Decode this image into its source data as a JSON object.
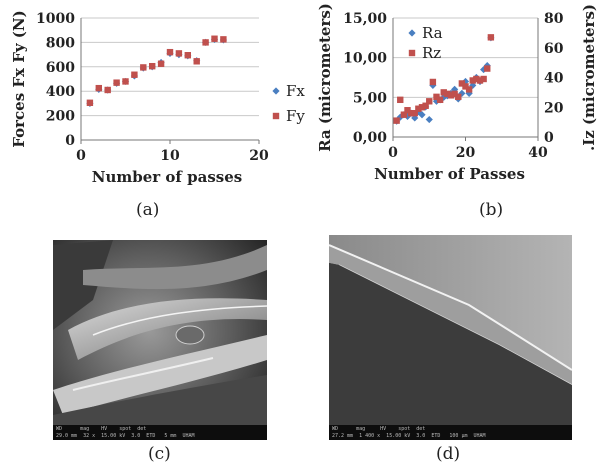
{
  "chart_data": [
    {
      "type": "scatter",
      "panel": "(a)",
      "xlabel": "Number of passes",
      "ylabel": "Forces  Fx  Fy (N)",
      "xlim": [
        0,
        20
      ],
      "ylim": [
        0,
        1000
      ],
      "xticks": [
        "0",
        "10",
        "20"
      ],
      "yticks": [
        "0",
        "200",
        "400",
        "600",
        "800",
        "1000"
      ],
      "legend_position": "right",
      "series": [
        {
          "name": "Fx",
          "color": "#4a7fc1",
          "marker": "diamond",
          "x": [
            1,
            2,
            3,
            4,
            5,
            6,
            7,
            8,
            9,
            10,
            11,
            12,
            13,
            14,
            15,
            16
          ],
          "y": [
            300,
            415,
            410,
            465,
            480,
            525,
            590,
            600,
            635,
            710,
            700,
            690,
            650,
            800,
            825,
            820
          ]
        },
        {
          "name": "Fy",
          "color": "#c0504d",
          "marker": "square",
          "x": [
            1,
            2,
            3,
            4,
            5,
            6,
            7,
            8,
            9,
            10,
            11,
            12,
            13,
            14,
            15,
            16
          ],
          "y": [
            305,
            425,
            410,
            470,
            480,
            535,
            595,
            605,
            625,
            720,
            710,
            695,
            645,
            800,
            830,
            825
          ]
        }
      ]
    },
    {
      "type": "scatter",
      "panel": "(b)",
      "xlabel": "Number of Passes",
      "ylabel": "Ra (micrometers)",
      "ylabel_right": ".Iz (micrometers)",
      "xlim": [
        0,
        40
      ],
      "ylim": [
        0,
        15
      ],
      "ylim_right": [
        0,
        80
      ],
      "xticks": [
        "0",
        "20",
        "40"
      ],
      "yticks": [
        "0,00",
        "5,00",
        "10,00",
        "15,00"
      ],
      "yticks_right": [
        "0",
        "20",
        "40",
        "60",
        "80"
      ],
      "legend_position": "top-inside",
      "series": [
        {
          "name": "Ra",
          "color": "#4a7fc1",
          "marker": "diamond",
          "axis": "left",
          "x": [
            1,
            2,
            3,
            4,
            5,
            6,
            7,
            8,
            9,
            10,
            11,
            12,
            13,
            14,
            15,
            16,
            17,
            18,
            19,
            20,
            21,
            22,
            23,
            24,
            25,
            26,
            27
          ],
          "y": [
            2.0,
            2.5,
            2.8,
            2.6,
            3.0,
            2.4,
            3.2,
            2.8,
            3.8,
            2.2,
            6.5,
            4.5,
            4.7,
            5.0,
            5.2,
            5.5,
            6.0,
            4.8,
            5.5,
            7.0,
            5.5,
            6.5,
            7.5,
            7.0,
            8.5,
            9.0,
            12.5
          ]
        },
        {
          "name": "Rz",
          "color": "#c0504d",
          "marker": "square",
          "axis": "right",
          "x": [
            1,
            2,
            3,
            4,
            5,
            6,
            7,
            8,
            9,
            10,
            11,
            12,
            13,
            14,
            15,
            16,
            17,
            18,
            19,
            20,
            21,
            22,
            23,
            24,
            25,
            26,
            27
          ],
          "y": [
            11,
            25,
            15,
            18,
            16,
            16,
            19,
            20,
            21,
            24,
            37,
            27,
            25,
            30,
            29,
            28,
            29,
            27,
            36,
            34,
            32,
            38,
            39,
            38,
            39,
            46,
            67
          ]
        }
      ]
    }
  ],
  "labels": {
    "a": "(a)",
    "b": "(b)",
    "c": "(c)",
    "d": "(d)"
  },
  "sem_c": {
    "header": "WD      mag    HV    spot  det",
    "values": "29.0 mm  32 x  15.00 kV  3.0  ETD",
    "scale": "5 mm",
    "lab": "UHAM"
  },
  "sem_d": {
    "header": "WD      mag     HV    spot  det",
    "values": "27.2 mm  1 400 x  15.00 kV  3.0  ETD",
    "scale": "100 µm",
    "lab": "UHAM"
  }
}
